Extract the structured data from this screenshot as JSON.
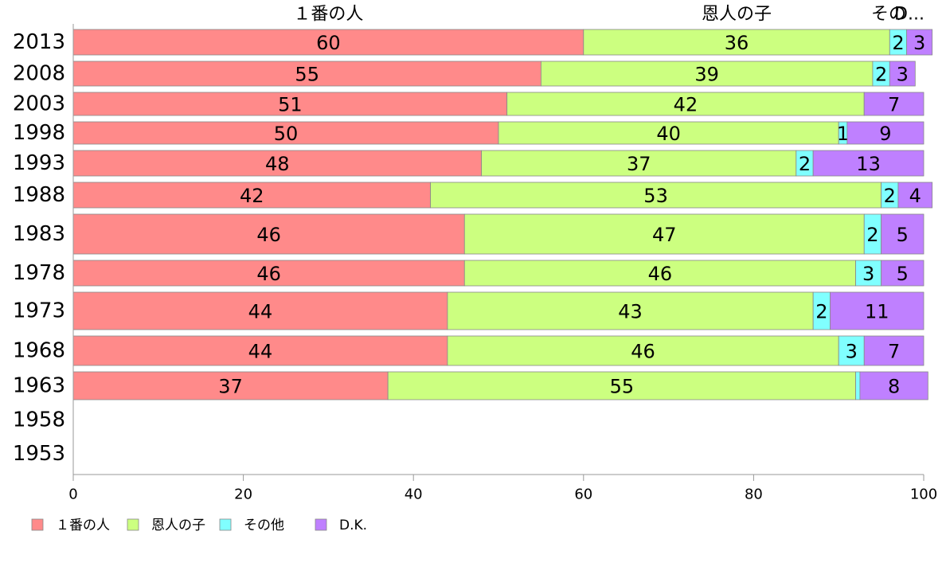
{
  "chart_data": {
    "type": "bar",
    "orientation": "horizontal",
    "stacked": true,
    "categories": [
      "2013",
      "2008",
      "2003",
      "1998",
      "1993",
      "1988",
      "1983",
      "1978",
      "1973",
      "1968",
      "1963",
      "1958",
      "1953"
    ],
    "series": [
      {
        "name": "１番の人",
        "color": "#ff8a8a",
        "values": [
          60,
          55,
          51,
          50,
          48,
          42,
          46,
          46,
          44,
          44,
          37,
          null,
          null
        ],
        "labels": [
          "60",
          "55",
          "51",
          "50",
          "48",
          "42",
          "46",
          "46",
          "44",
          "44",
          "37",
          "",
          ""
        ]
      },
      {
        "name": "恩人の子",
        "color": "#ccff80",
        "values": [
          36,
          39,
          42,
          40,
          37,
          53,
          47,
          46,
          43,
          46,
          55,
          null,
          null
        ],
        "labels": [
          "36",
          "39",
          "42",
          "40",
          "37",
          "53",
          "47",
          "46",
          "43",
          "46",
          "55",
          "",
          ""
        ]
      },
      {
        "name": "その他",
        "color": "#80ffff",
        "values": [
          2,
          2,
          0,
          1,
          2,
          2,
          2,
          3,
          2,
          3,
          0.5,
          null,
          null
        ],
        "labels": [
          "2",
          "2",
          "",
          "1",
          "2",
          "2",
          "2",
          "3",
          "2",
          "3",
          "",
          "",
          " "
        ]
      },
      {
        "name": "D.K.",
        "color": "#bf80ff",
        "values": [
          3,
          3,
          7,
          9,
          13,
          4,
          5,
          5,
          11,
          7,
          8,
          null,
          null
        ],
        "labels": [
          "3",
          "3",
          "7",
          "9",
          "13",
          "4",
          "5",
          "5",
          "11",
          "7",
          "8",
          "",
          ""
        ]
      }
    ],
    "xlim": [
      0,
      100
    ],
    "xticks": [
      "0",
      "20",
      "40",
      "60",
      "80",
      "100"
    ],
    "column_headers": [
      "１番の人",
      "恩人の子",
      "その他",
      "D.K."
    ],
    "column_header_display": [
      "１番の人",
      "恩人の子",
      "その",
      "D..."
    ],
    "legend": {
      "position": "bottom-left",
      "labels": [
        "１番の人",
        "恩人の子",
        "その他",
        "D.K."
      ]
    },
    "grid": false
  }
}
